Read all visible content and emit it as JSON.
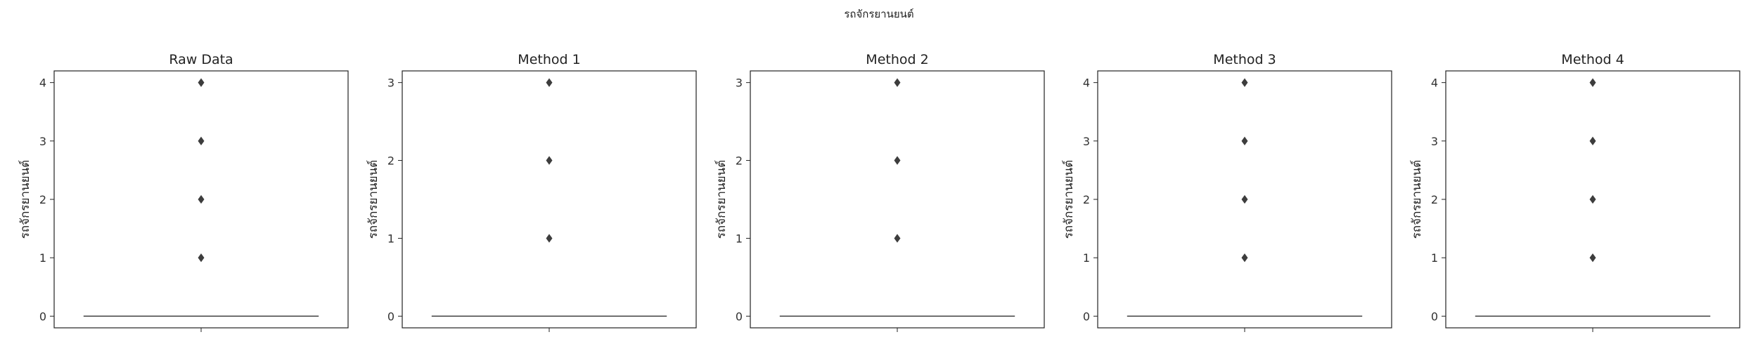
{
  "figure": {
    "suptitle": "รถจักรยานยนต์"
  },
  "chart_data": [
    {
      "type": "box",
      "title": "Raw Data",
      "ylabel": "รถจักรยานยนต์",
      "xlabel": "",
      "ylim": [
        -0.2,
        4.2
      ],
      "yticks": [
        0,
        1,
        2,
        3,
        4
      ],
      "box": {
        "q1": 0,
        "median": 0,
        "q3": 0,
        "whisker_low": 0,
        "whisker_high": 0
      },
      "outliers": [
        1,
        2,
        3,
        4
      ],
      "grid": false
    },
    {
      "type": "box",
      "title": "Method 1",
      "ylabel": "รถจักรยานยนต์",
      "xlabel": "",
      "ylim": [
        -0.15,
        3.15
      ],
      "yticks": [
        0,
        1,
        2,
        3
      ],
      "box": {
        "q1": 0,
        "median": 0,
        "q3": 0,
        "whisker_low": 0,
        "whisker_high": 0
      },
      "outliers": [
        1,
        2,
        3
      ],
      "grid": false
    },
    {
      "type": "box",
      "title": "Method 2",
      "ylabel": "รถจักรยานยนต์",
      "xlabel": "",
      "ylim": [
        -0.15,
        3.15
      ],
      "yticks": [
        0,
        1,
        2,
        3
      ],
      "box": {
        "q1": 0,
        "median": 0,
        "q3": 0,
        "whisker_low": 0,
        "whisker_high": 0
      },
      "outliers": [
        1,
        2,
        3
      ],
      "grid": false
    },
    {
      "type": "box",
      "title": "Method 3",
      "ylabel": "รถจักรยานยนต์",
      "xlabel": "",
      "ylim": [
        -0.2,
        4.2
      ],
      "yticks": [
        0,
        1,
        2,
        3,
        4
      ],
      "box": {
        "q1": 0,
        "median": 0,
        "q3": 0,
        "whisker_low": 0,
        "whisker_high": 0
      },
      "outliers": [
        1,
        2,
        3,
        4
      ],
      "grid": false
    },
    {
      "type": "box",
      "title": "Method 4",
      "ylabel": "รถจักรยานยนต์",
      "xlabel": "",
      "ylim": [
        -0.2,
        4.2
      ],
      "yticks": [
        0,
        1,
        2,
        3,
        4
      ],
      "box": {
        "q1": 0,
        "median": 0,
        "q3": 0,
        "whisker_low": 0,
        "whisker_high": 0
      },
      "outliers": [
        1,
        2,
        3,
        4
      ],
      "grid": false
    }
  ],
  "colors": {
    "axis": "#222222",
    "marker": "#3d3d3d",
    "median_line": "#3d3d3d"
  }
}
